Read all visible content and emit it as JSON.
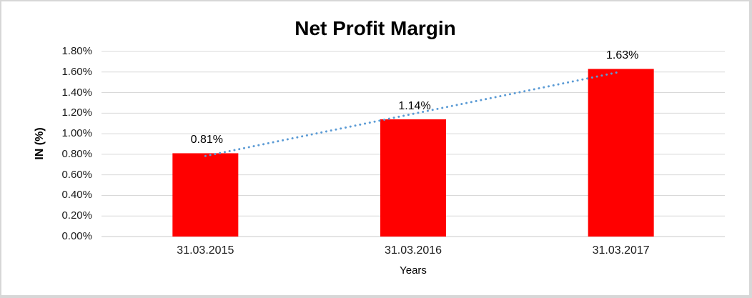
{
  "frame": {
    "background_color": "#ffffff",
    "border_color": "#d7d7d7"
  },
  "chart_data": {
    "type": "bar",
    "title": "Net Profit Margin",
    "xlabel": "Years",
    "ylabel": "IN (%)",
    "categories": [
      "31.03.2015",
      "31.03.2016",
      "31.03.2017"
    ],
    "series": [
      {
        "name": "Net Profit Margin",
        "values": [
          0.81,
          1.14,
          1.63
        ],
        "data_labels": [
          "0.81%",
          "1.14%",
          "1.63%"
        ],
        "color": "#ff0000"
      }
    ],
    "ylim": [
      0.0,
      1.8
    ],
    "ytick_step": 0.2,
    "ytick_labels": [
      "0.00%",
      "0.20%",
      "0.40%",
      "0.60%",
      "0.80%",
      "1.00%",
      "1.20%",
      "1.40%",
      "1.60%",
      "1.80%"
    ],
    "grid": "horizontal",
    "gridline_color": "#d9d9d9",
    "baseline_color": "#c9c9c9",
    "legend": false,
    "trendline": {
      "type": "linear",
      "style": "dotted",
      "color": "#5b9bd5"
    }
  }
}
